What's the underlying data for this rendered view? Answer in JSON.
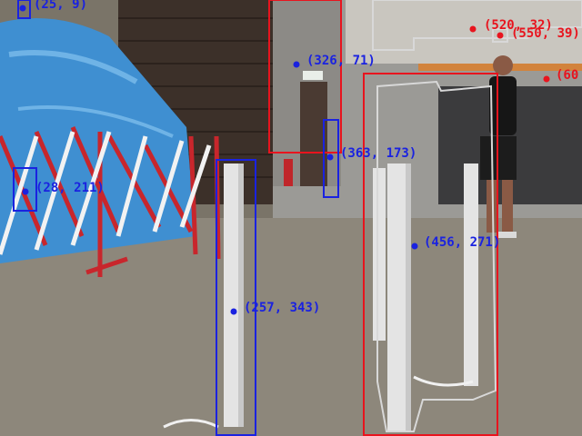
{
  "scene": {
    "description_free": true,
    "colors": {
      "box_red": "#e8141e",
      "box_blue": "#1a22e0",
      "mask_outline": "#d8d8d8",
      "floor": "#8a857a",
      "wall_dark": "#3a2e26",
      "tarp": "#3f8fd1",
      "pole": "#e4e4e4",
      "barrier_red": "#c8262c"
    }
  },
  "annotations": {
    "points": [
      {
        "id": "p1",
        "color": "blue",
        "label": "(25, 9)"
      },
      {
        "id": "p2",
        "color": "red",
        "label": "(520, 32)"
      },
      {
        "id": "p3",
        "color": "red",
        "label": "(550, 39)"
      },
      {
        "id": "p4",
        "color": "blue",
        "label": "(326, 71)"
      },
      {
        "id": "p5",
        "color": "red",
        "label": "(60"
      },
      {
        "id": "p6",
        "color": "blue",
        "label": "(363, 173)"
      },
      {
        "id": "p7",
        "color": "blue",
        "label": "(28, 211)"
      },
      {
        "id": "p8",
        "color": "blue",
        "label": "(456, 271)"
      },
      {
        "id": "p9",
        "color": "blue",
        "label": "(257, 343)"
      }
    ]
  }
}
